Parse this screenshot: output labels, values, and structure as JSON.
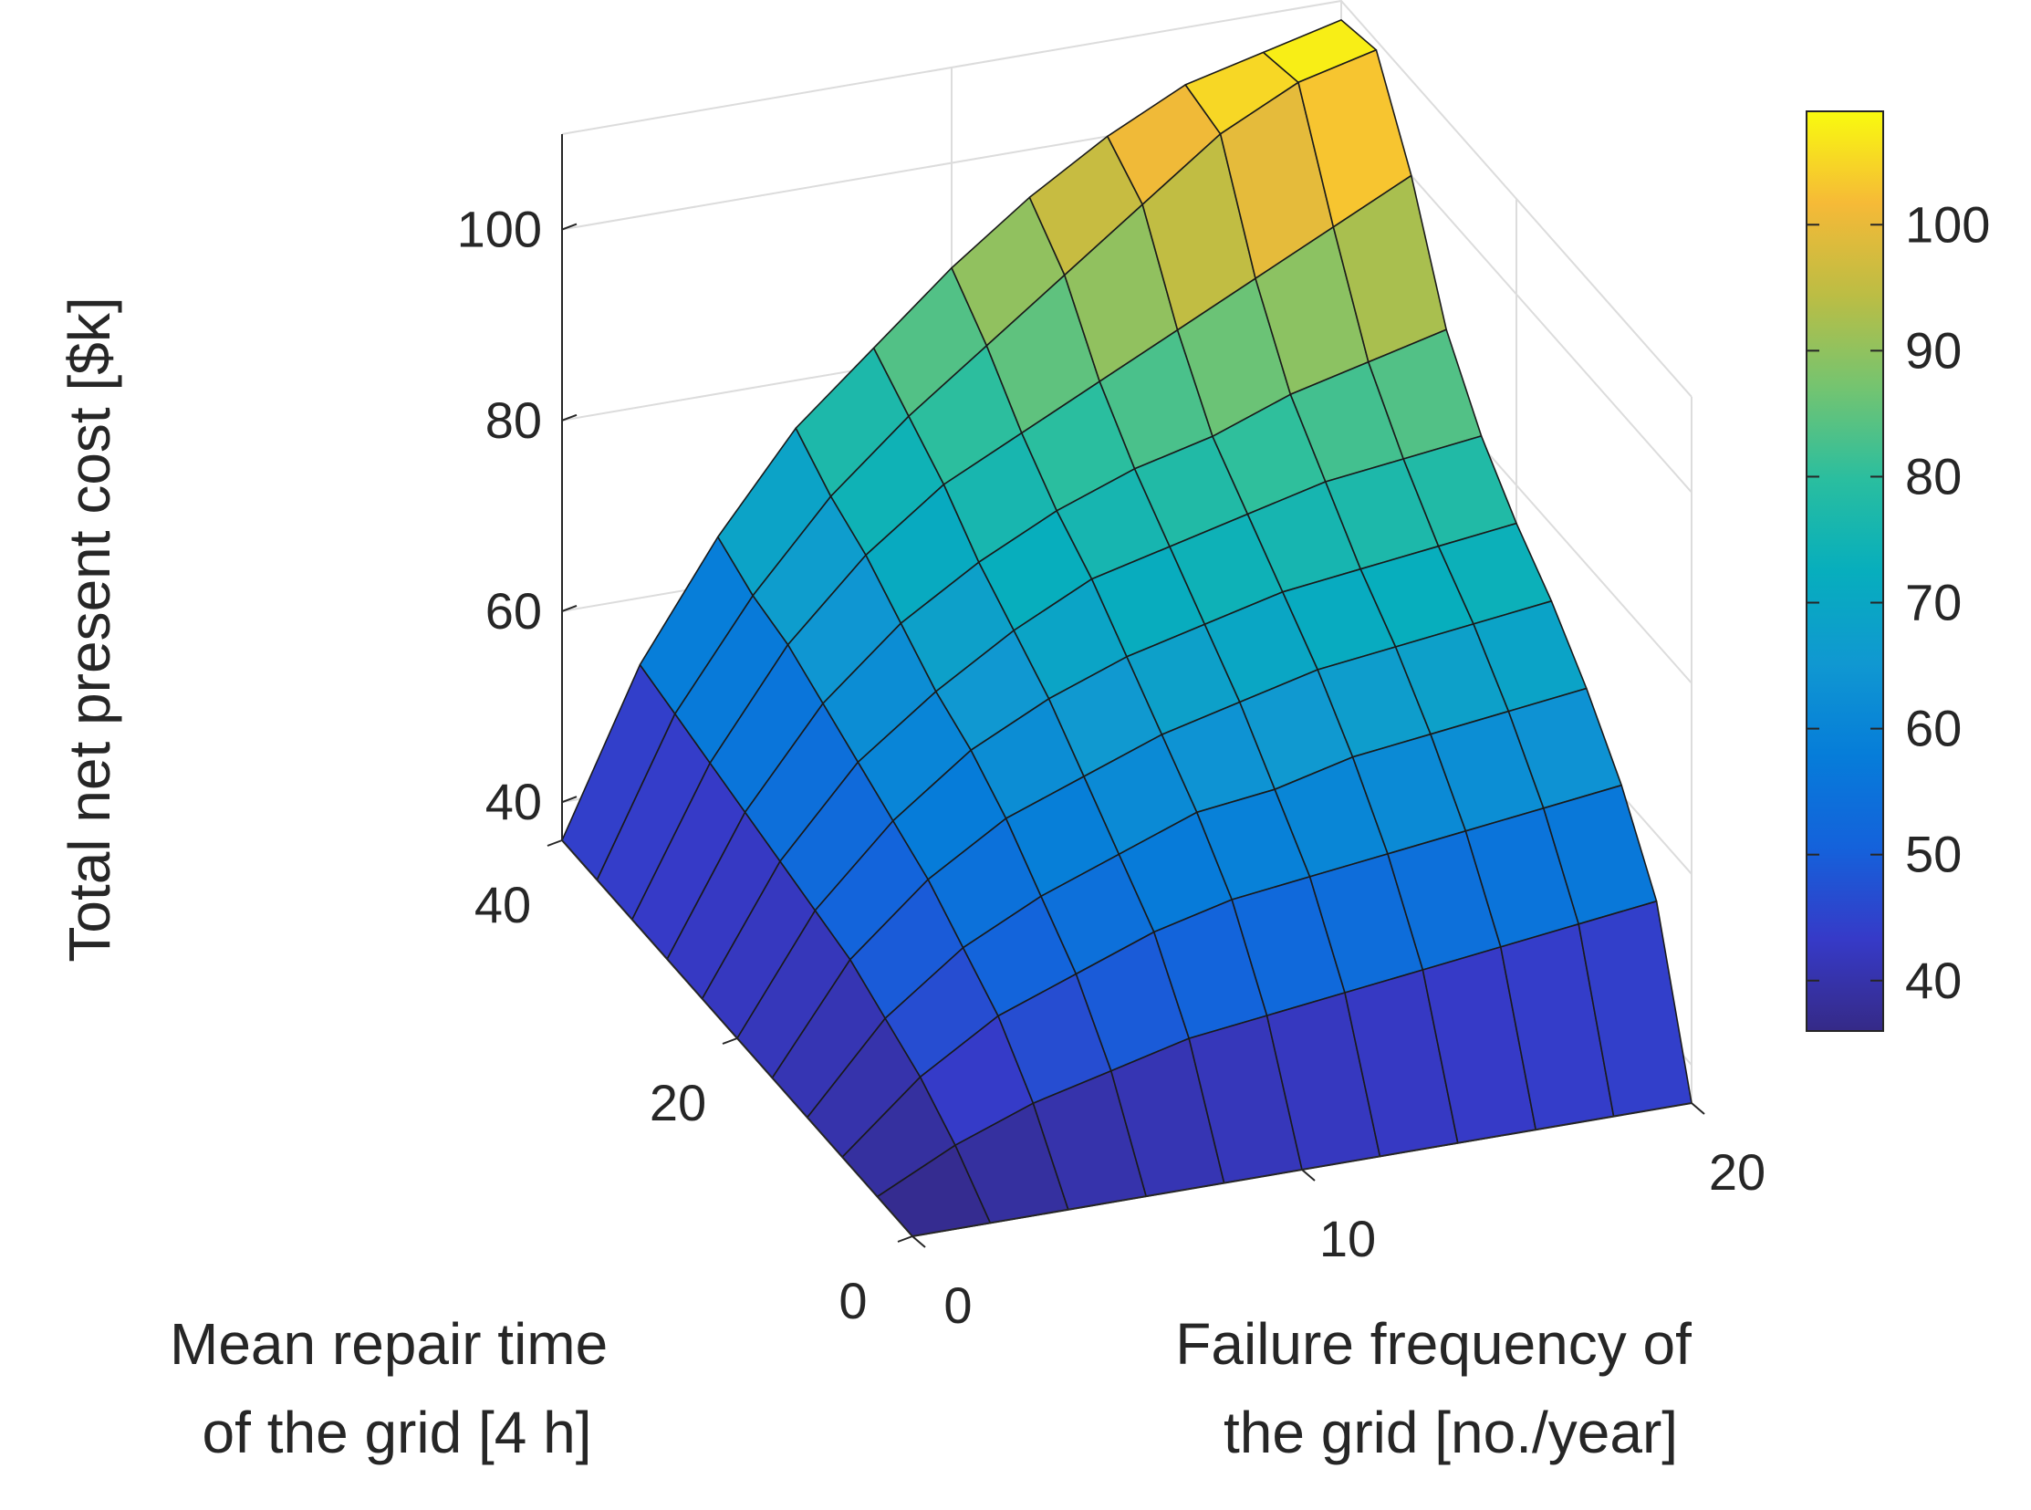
{
  "chart_data": {
    "type": "surface",
    "xlabel": "Failure frequency of the grid [no./year]",
    "ylabel": "Mean repair time of the grid [4 h]",
    "zlabel": "Total net present cost [$k]",
    "xlabel_lines": [
      "Failure frequency of",
      "the grid [no./year]"
    ],
    "ylabel_lines": [
      "Mean repair time",
      "of the grid [4 h]"
    ],
    "xlim": [
      0,
      20
    ],
    "ylim": [
      0,
      40
    ],
    "zlim": [
      36,
      110
    ],
    "x_ticks": [
      0,
      10,
      20
    ],
    "y_ticks": [
      0,
      20,
      40
    ],
    "z_ticks": [
      40,
      60,
      80,
      100
    ],
    "colorbar": {
      "colormap": "parula",
      "range": [
        36,
        109
      ],
      "ticks": [
        40,
        50,
        60,
        70,
        80,
        90,
        100
      ]
    },
    "grid": true,
    "surface": {
      "x": [
        0,
        2,
        4,
        6,
        8,
        10,
        12,
        14,
        16,
        18,
        20
      ],
      "y": [
        0,
        4,
        8,
        12,
        16,
        20,
        24,
        28,
        32,
        36,
        40
      ],
      "z": [
        [
          36,
          36,
          36,
          36,
          36,
          36,
          36,
          36,
          36,
          36,
          36
        ],
        [
          36,
          40,
          43,
          45,
          47,
          48,
          49,
          50,
          51,
          52,
          53
        ],
        [
          36,
          43,
          48,
          51,
          54,
          56,
          57,
          58,
          59,
          60,
          61
        ],
        [
          36,
          45,
          51,
          55,
          58,
          61,
          62,
          64,
          65,
          66,
          67
        ],
        [
          36,
          47,
          54,
          59,
          62,
          65,
          67,
          69,
          70,
          71,
          72
        ],
        [
          36,
          48,
          56,
          62,
          66,
          69,
          71,
          73,
          74,
          75,
          76
        ],
        [
          36,
          49,
          58,
          64,
          69,
          73,
          75,
          77,
          79,
          80,
          81
        ],
        [
          36,
          50,
          60,
          67,
          72,
          76,
          79,
          81,
          84,
          86,
          88
        ],
        [
          36,
          51,
          62,
          70,
          76,
          80,
          84,
          88,
          92,
          96,
          100
        ],
        [
          36,
          52,
          63,
          72,
          79,
          85,
          91,
          97,
          103,
          107,
          109
        ],
        [
          36,
          53,
          65,
          75,
          82,
          89,
          95,
          100,
          104,
          106,
          108
        ]
      ]
    }
  }
}
